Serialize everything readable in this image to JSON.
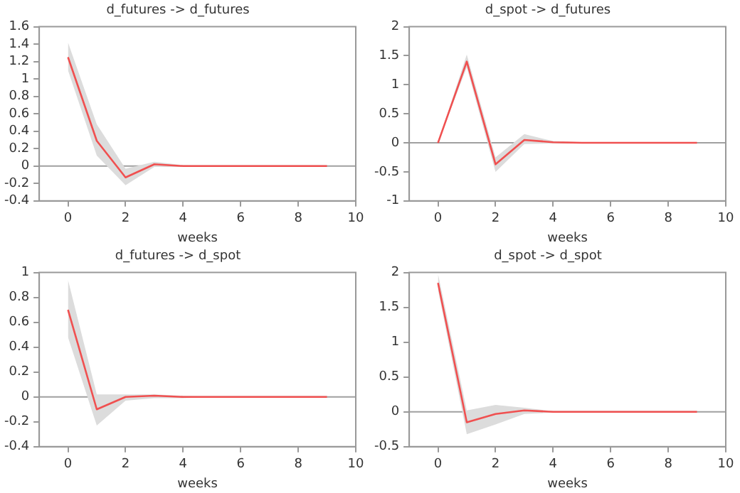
{
  "chart_data": [
    {
      "type": "line",
      "title": "d_futures -> d_futures",
      "xlabel": "weeks",
      "x": [
        0,
        1,
        2,
        3,
        4,
        5,
        6,
        7,
        8,
        9
      ],
      "xlim": [
        -1,
        10
      ],
      "xticks": [
        0,
        2,
        4,
        6,
        8,
        10
      ],
      "ylim": [
        -0.4,
        1.6
      ],
      "yticks": [
        -0.4,
        -0.2,
        0,
        0.2,
        0.4,
        0.6,
        0.8,
        1,
        1.2,
        1.4,
        1.6
      ],
      "grid": false,
      "legend": false,
      "ref_lines": [
        {
          "axis": "y",
          "value": 0,
          "color": "#a0a0a0"
        }
      ],
      "series": [
        {
          "color": "#f05050",
          "values": [
            1.25,
            0.29,
            -0.13,
            0.02,
            0,
            0,
            0,
            0,
            0,
            0
          ],
          "lower": [
            1.1,
            0.12,
            -0.22,
            -0.01,
            -0.01,
            0,
            0,
            0,
            0,
            0
          ],
          "upper": [
            1.42,
            0.48,
            -0.03,
            0.05,
            0.01,
            0,
            0,
            0,
            0,
            0
          ]
        }
      ]
    },
    {
      "type": "line",
      "title": "d_spot -> d_futures",
      "xlabel": "weeks",
      "x": [
        0,
        1,
        2,
        3,
        4,
        5,
        6,
        7,
        8,
        9
      ],
      "xlim": [
        -1,
        10
      ],
      "xticks": [
        0,
        2,
        4,
        6,
        8,
        10
      ],
      "ylim": [
        -1,
        2
      ],
      "yticks": [
        -1,
        -0.5,
        0,
        0.5,
        1,
        1.5,
        2
      ],
      "grid": false,
      "legend": false,
      "ref_lines": [
        {
          "axis": "y",
          "value": 0,
          "color": "#a0a0a0"
        }
      ],
      "series": [
        {
          "color": "#f05050",
          "values": [
            0,
            1.4,
            -0.37,
            0.05,
            0.01,
            0,
            0,
            0,
            0,
            0
          ],
          "lower": [
            0,
            1.3,
            -0.5,
            -0.02,
            -0.01,
            0,
            0,
            0,
            0,
            0
          ],
          "upper": [
            0,
            1.52,
            -0.25,
            0.15,
            0.03,
            0.01,
            0,
            0,
            0,
            0
          ]
        }
      ]
    },
    {
      "type": "line",
      "title": "d_futures -> d_spot",
      "xlabel": "weeks",
      "x": [
        0,
        1,
        2,
        3,
        4,
        5,
        6,
        7,
        8,
        9
      ],
      "xlim": [
        -1,
        10
      ],
      "xticks": [
        0,
        2,
        4,
        6,
        8,
        10
      ],
      "ylim": [
        -0.4,
        1
      ],
      "yticks": [
        -0.4,
        -0.2,
        0,
        0.2,
        0.4,
        0.6,
        0.8,
        1
      ],
      "grid": false,
      "legend": false,
      "ref_lines": [
        {
          "axis": "y",
          "value": 0,
          "color": "#a0a0a0"
        }
      ],
      "series": [
        {
          "color": "#f05050",
          "values": [
            0.7,
            -0.1,
            0,
            0.01,
            0,
            0,
            0,
            0,
            0,
            0
          ],
          "lower": [
            0.48,
            -0.23,
            -0.03,
            -0.01,
            -0.01,
            0,
            0,
            0,
            0,
            0
          ],
          "upper": [
            0.94,
            0.02,
            0.02,
            0.02,
            0.01,
            0,
            0,
            0,
            0,
            0
          ]
        }
      ]
    },
    {
      "type": "line",
      "title": "d_spot -> d_spot",
      "xlabel": "weeks",
      "x": [
        0,
        1,
        2,
        3,
        4,
        5,
        6,
        7,
        8,
        9
      ],
      "xlim": [
        -1,
        10
      ],
      "xticks": [
        0,
        2,
        4,
        6,
        8,
        10
      ],
      "ylim": [
        -0.5,
        2
      ],
      "yticks": [
        -0.5,
        0,
        0.5,
        1,
        1.5,
        2
      ],
      "grid": false,
      "legend": false,
      "ref_lines": [
        {
          "axis": "y",
          "value": 0,
          "color": "#a0a0a0"
        }
      ],
      "series": [
        {
          "color": "#f05050",
          "values": [
            1.85,
            -0.15,
            -0.03,
            0.02,
            0,
            0,
            0,
            0,
            0,
            0
          ],
          "lower": [
            1.75,
            -0.32,
            -0.18,
            -0.03,
            -0.01,
            0,
            0,
            0,
            0,
            0
          ],
          "upper": [
            1.98,
            0.02,
            0.1,
            0.06,
            0.01,
            0,
            0,
            0,
            0,
            0
          ]
        }
      ]
    }
  ]
}
